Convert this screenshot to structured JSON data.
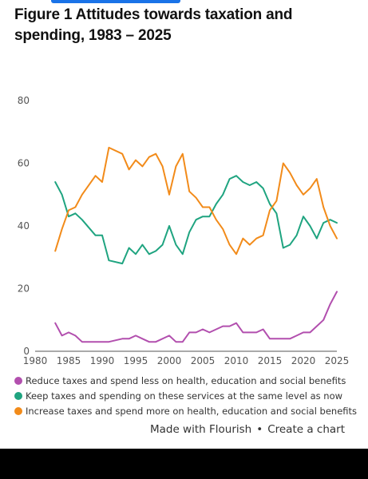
{
  "title": "Figure 1 Attitudes towards taxation and spending, 1983 – 2025",
  "footer": {
    "made_with": "Made with Flourish",
    "separator": "•",
    "create": "Create a chart"
  },
  "colors": {
    "reduce": "#b24fae",
    "keep": "#1fa480",
    "increase": "#f28b1a",
    "axis": "#555555",
    "gridline": "#e6e6e6"
  },
  "chart_data": {
    "type": "line",
    "title": "",
    "xlabel": "",
    "ylabel": "",
    "xlim": [
      1980,
      2025
    ],
    "ylim": [
      0,
      80
    ],
    "x_ticks": [
      "1980",
      "1985",
      "1990",
      "1995",
      "2000",
      "2005",
      "2010",
      "2015",
      "2020",
      "2025"
    ],
    "y_ticks": [
      "0",
      "20",
      "40",
      "60",
      "80"
    ],
    "grid": false,
    "legend_position": "bottom",
    "series": [
      {
        "key": "reduce",
        "name": "Reduce taxes and spend less on health, education and social benefits",
        "color": "#b24fae",
        "x": [
          1983,
          1984,
          1985,
          1986,
          1987,
          1989,
          1990,
          1991,
          1993,
          1994,
          1995,
          1996,
          1997,
          1998,
          2000,
          2001,
          2002,
          2003,
          2004,
          2005,
          2006,
          2007,
          2008,
          2009,
          2010,
          2011,
          2012,
          2013,
          2014,
          2015,
          2016,
          2017,
          2018,
          2019,
          2020,
          2021,
          2022,
          2023,
          2024,
          2025
        ],
        "y": [
          9,
          5,
          6,
          5,
          3,
          3,
          3,
          3,
          4,
          4,
          5,
          4,
          3,
          3,
          5,
          3,
          3,
          6,
          6,
          7,
          6,
          7,
          8,
          8,
          9,
          6,
          6,
          6,
          7,
          4,
          4,
          4,
          4,
          5,
          6,
          6,
          8,
          10,
          15,
          19
        ]
      },
      {
        "key": "keep",
        "name": "Keep taxes and spending on these services at the same level as now",
        "color": "#1fa480",
        "x": [
          1983,
          1984,
          1985,
          1986,
          1987,
          1989,
          1990,
          1991,
          1993,
          1994,
          1995,
          1996,
          1997,
          1998,
          1999,
          2000,
          2001,
          2002,
          2003,
          2004,
          2005,
          2006,
          2007,
          2008,
          2009,
          2010,
          2011,
          2012,
          2013,
          2014,
          2015,
          2016,
          2017,
          2018,
          2019,
          2020,
          2021,
          2022,
          2023,
          2024,
          2025
        ],
        "y": [
          54,
          50,
          43,
          44,
          42,
          37,
          37,
          29,
          28,
          33,
          31,
          34,
          31,
          32,
          34,
          40,
          34,
          31,
          38,
          42,
          43,
          43,
          47,
          50,
          55,
          56,
          54,
          53,
          54,
          52,
          47,
          44,
          33,
          34,
          37,
          43,
          40,
          36,
          41,
          42,
          41
        ]
      },
      {
        "key": "increase",
        "name": "Increase taxes and spend more on health, education and social benefits",
        "color": "#f28b1a",
        "x": [
          1983,
          1984,
          1985,
          1986,
          1987,
          1989,
          1990,
          1991,
          1993,
          1994,
          1995,
          1996,
          1997,
          1998,
          1999,
          2000,
          2001,
          2002,
          2003,
          2004,
          2005,
          2006,
          2007,
          2008,
          2009,
          2010,
          2011,
          2012,
          2013,
          2014,
          2015,
          2016,
          2017,
          2018,
          2019,
          2020,
          2021,
          2022,
          2023,
          2024,
          2025
        ],
        "y": [
          32,
          39,
          45,
          46,
          50,
          56,
          54,
          65,
          63,
          58,
          61,
          59,
          62,
          63,
          59,
          50,
          59,
          63,
          51,
          49,
          46,
          46,
          42,
          39,
          34,
          31,
          36,
          34,
          36,
          37,
          45,
          48,
          60,
          57,
          53,
          50,
          52,
          55,
          46,
          40,
          36
        ]
      }
    ]
  }
}
